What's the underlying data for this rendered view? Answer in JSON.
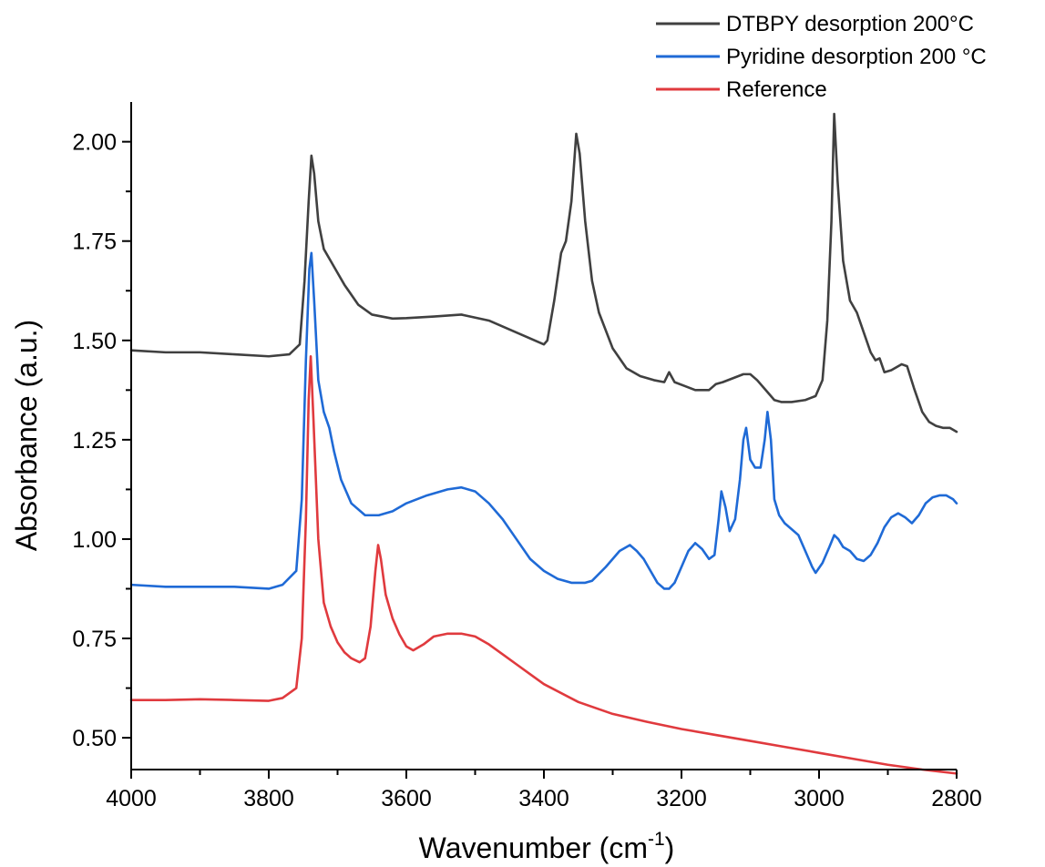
{
  "chart_data": {
    "type": "line",
    "xlabel": "Wavenumber (cm",
    "xlabel_sup": "-1",
    "xlabel_close": ")",
    "ylabel": "Absorbance (a.u.)",
    "xlim": [
      4000,
      2800
    ],
    "x_reversed": true,
    "ylim": [
      0.42,
      2.1
    ],
    "x_ticks": [
      4000,
      3800,
      3600,
      3400,
      3200,
      3000,
      2800
    ],
    "x_tick_labels": [
      "4000",
      "3800",
      "3600",
      "3400",
      "3200",
      "3000",
      "2800"
    ],
    "y_ticks": [
      0.5,
      0.75,
      1.0,
      1.25,
      1.5,
      1.75,
      2.0
    ],
    "y_tick_labels": [
      "0.50",
      "0.75",
      "1.00",
      "1.25",
      "1.50",
      "1.75",
      "2.00"
    ],
    "grid": false,
    "legend_position": "top-right",
    "series": [
      {
        "name": "DTBPY desorption 200°C",
        "color": "#404040",
        "x": [
          4000,
          3950,
          3900,
          3850,
          3800,
          3770,
          3755,
          3748,
          3742,
          3738,
          3734,
          3728,
          3720,
          3710,
          3700,
          3690,
          3670,
          3650,
          3620,
          3600,
          3560,
          3520,
          3480,
          3440,
          3400,
          3395,
          3385,
          3375,
          3368,
          3360,
          3353,
          3348,
          3340,
          3330,
          3320,
          3300,
          3280,
          3260,
          3240,
          3225,
          3218,
          3210,
          3195,
          3180,
          3160,
          3150,
          3140,
          3125,
          3110,
          3100,
          3090,
          3075,
          3065,
          3055,
          3040,
          3020,
          3005,
          2995,
          2988,
          2982,
          2978,
          2973,
          2965,
          2955,
          2945,
          2935,
          2925,
          2918,
          2912,
          2905,
          2895,
          2880,
          2872,
          2862,
          2850,
          2840,
          2830,
          2820,
          2810,
          2800
        ],
        "y": [
          1.475,
          1.47,
          1.47,
          1.465,
          1.46,
          1.465,
          1.49,
          1.65,
          1.85,
          1.965,
          1.92,
          1.8,
          1.73,
          1.7,
          1.67,
          1.64,
          1.59,
          1.565,
          1.555,
          1.556,
          1.56,
          1.565,
          1.55,
          1.52,
          1.49,
          1.5,
          1.6,
          1.72,
          1.75,
          1.85,
          2.02,
          1.97,
          1.8,
          1.65,
          1.57,
          1.48,
          1.43,
          1.41,
          1.4,
          1.395,
          1.42,
          1.395,
          1.385,
          1.375,
          1.375,
          1.39,
          1.395,
          1.405,
          1.415,
          1.415,
          1.4,
          1.37,
          1.35,
          1.345,
          1.345,
          1.35,
          1.36,
          1.4,
          1.55,
          1.8,
          2.07,
          1.9,
          1.7,
          1.6,
          1.57,
          1.52,
          1.47,
          1.45,
          1.455,
          1.42,
          1.425,
          1.44,
          1.435,
          1.38,
          1.32,
          1.295,
          1.285,
          1.28,
          1.28,
          1.27
        ]
      },
      {
        "name": "Pyridine desorption 200 °C",
        "color": "#1f6ad6",
        "x": [
          4000,
          3950,
          3900,
          3850,
          3800,
          3780,
          3760,
          3752,
          3746,
          3741,
          3738,
          3734,
          3728,
          3720,
          3712,
          3705,
          3695,
          3680,
          3660,
          3640,
          3620,
          3600,
          3570,
          3540,
          3520,
          3500,
          3480,
          3460,
          3440,
          3420,
          3400,
          3380,
          3360,
          3340,
          3330,
          3310,
          3290,
          3275,
          3265,
          3255,
          3245,
          3235,
          3225,
          3218,
          3210,
          3200,
          3190,
          3180,
          3170,
          3160,
          3152,
          3146,
          3142,
          3136,
          3130,
          3122,
          3115,
          3110,
          3106,
          3100,
          3093,
          3085,
          3079,
          3075,
          3070,
          3065,
          3058,
          3050,
          3040,
          3030,
          3020,
          3010,
          3005,
          2995,
          2985,
          2978,
          2972,
          2965,
          2955,
          2945,
          2935,
          2925,
          2915,
          2905,
          2895,
          2885,
          2875,
          2865,
          2855,
          2845,
          2835,
          2825,
          2815,
          2805,
          2800
        ],
        "y": [
          0.885,
          0.88,
          0.88,
          0.88,
          0.875,
          0.885,
          0.92,
          1.1,
          1.45,
          1.68,
          1.72,
          1.6,
          1.4,
          1.32,
          1.28,
          1.22,
          1.15,
          1.09,
          1.06,
          1.06,
          1.07,
          1.09,
          1.11,
          1.125,
          1.13,
          1.12,
          1.09,
          1.05,
          1.0,
          0.95,
          0.92,
          0.9,
          0.89,
          0.89,
          0.895,
          0.93,
          0.97,
          0.985,
          0.97,
          0.95,
          0.92,
          0.89,
          0.875,
          0.875,
          0.89,
          0.93,
          0.97,
          0.99,
          0.975,
          0.95,
          0.96,
          1.05,
          1.12,
          1.08,
          1.02,
          1.05,
          1.15,
          1.25,
          1.28,
          1.2,
          1.18,
          1.18,
          1.25,
          1.32,
          1.25,
          1.1,
          1.06,
          1.04,
          1.025,
          1.01,
          0.97,
          0.93,
          0.915,
          0.94,
          0.98,
          1.01,
          1.0,
          0.98,
          0.97,
          0.95,
          0.945,
          0.96,
          0.99,
          1.03,
          1.055,
          1.065,
          1.055,
          1.04,
          1.06,
          1.09,
          1.105,
          1.11,
          1.11,
          1.1,
          1.09
        ]
      },
      {
        "name": "Reference",
        "color": "#e03a3e",
        "x": [
          4000,
          3950,
          3900,
          3850,
          3800,
          3780,
          3760,
          3752,
          3746,
          3742,
          3739,
          3735,
          3728,
          3720,
          3710,
          3700,
          3690,
          3680,
          3668,
          3660,
          3652,
          3645,
          3641,
          3637,
          3630,
          3620,
          3610,
          3600,
          3590,
          3575,
          3560,
          3540,
          3520,
          3500,
          3480,
          3460,
          3440,
          3420,
          3400,
          3350,
          3300,
          3250,
          3200,
          3150,
          3100,
          3050,
          3000,
          2950,
          2900,
          2850,
          2800
        ],
        "y": [
          0.595,
          0.595,
          0.597,
          0.595,
          0.593,
          0.6,
          0.625,
          0.75,
          1.05,
          1.35,
          1.46,
          1.3,
          1.0,
          0.84,
          0.78,
          0.74,
          0.715,
          0.7,
          0.69,
          0.7,
          0.78,
          0.92,
          0.985,
          0.95,
          0.86,
          0.8,
          0.76,
          0.73,
          0.72,
          0.735,
          0.755,
          0.762,
          0.762,
          0.755,
          0.735,
          0.71,
          0.685,
          0.66,
          0.635,
          0.59,
          0.56,
          0.54,
          0.522,
          0.507,
          0.492,
          0.477,
          0.462,
          0.447,
          0.432,
          0.42,
          0.41
        ]
      }
    ]
  }
}
